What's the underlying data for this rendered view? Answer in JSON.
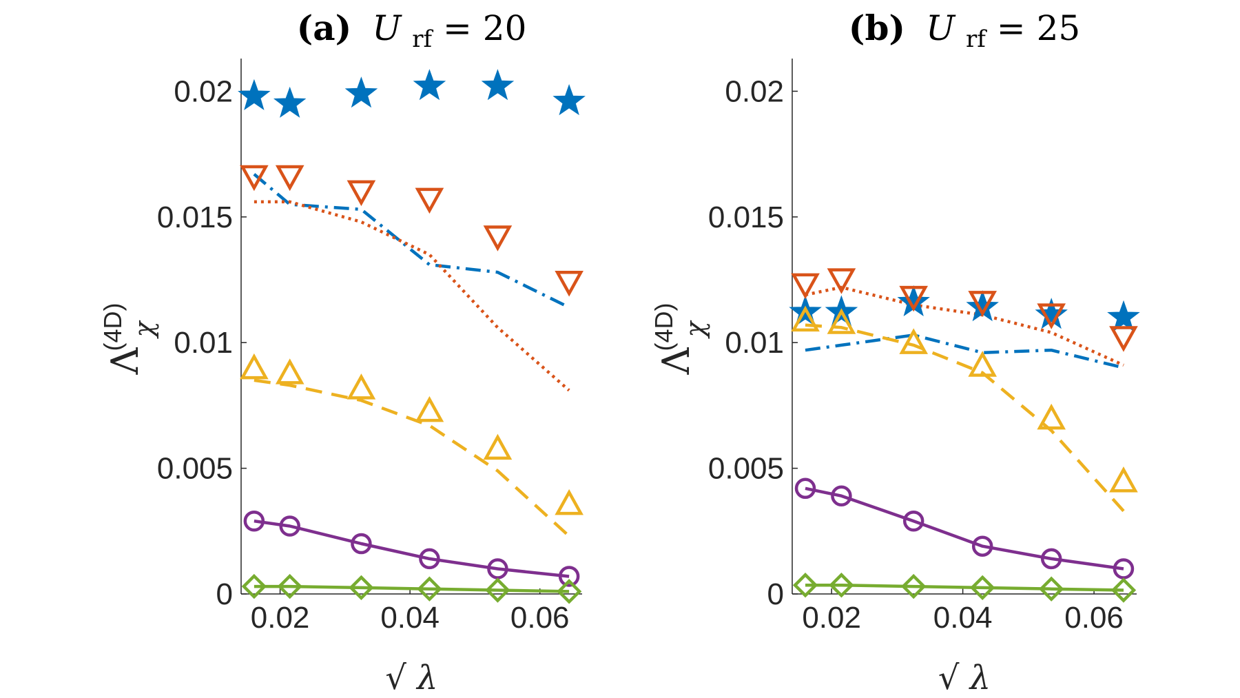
{
  "chart_data": [
    {
      "type": "line",
      "panel_label": "(a)",
      "title_var": "U",
      "title_sub": "rf",
      "title_eq": " = 20",
      "xlabel_root": "√",
      "xlabel_var": "λ",
      "ylabel_main": "Λ",
      "ylabel_sup": "(4D)",
      "ylabel_sub": "χ",
      "xlim": [
        0.014,
        0.0665
      ],
      "ylim": [
        0,
        0.0213
      ],
      "xticks": [
        0.02,
        0.04,
        0.06
      ],
      "xtick_labels": [
        "0.02",
        "0.04",
        "0.06"
      ],
      "yticks": [
        0,
        0.005,
        0.01,
        0.015,
        0.02
      ],
      "ytick_labels": [
        "0",
        "0.005",
        "0.01",
        "0.015",
        "0.02"
      ],
      "x": [
        0.016,
        0.0215,
        0.0325,
        0.043,
        0.0535,
        0.0645
      ],
      "series": [
        {
          "name": "blue stars",
          "color": "#0072BD",
          "marker": "star",
          "line": "none",
          "values": [
            0.0198,
            0.0195,
            0.0199,
            0.0202,
            0.0202,
            0.0196
          ]
        },
        {
          "name": "blue dash-dot",
          "color": "#0072BD",
          "marker": "none",
          "line": "dashdot",
          "values": [
            0.0167,
            0.0155,
            0.0153,
            0.0131,
            0.0128,
            0.0114
          ]
        },
        {
          "name": "red triangles down",
          "color": "#D95319",
          "marker": "triangle-down",
          "line": "none",
          "values": [
            0.0166,
            0.0166,
            0.016,
            0.0157,
            0.0142,
            0.0124
          ]
        },
        {
          "name": "red dotted",
          "color": "#D95319",
          "marker": "none",
          "line": "dotted",
          "values": [
            0.0156,
            0.0156,
            0.0148,
            0.0135,
            0.0106,
            0.0081
          ]
        },
        {
          "name": "yellow triangles up",
          "color": "#EDB120",
          "marker": "triangle-up",
          "line": "none",
          "values": [
            0.009,
            0.0088,
            0.0082,
            0.0073,
            0.0058,
            0.0036
          ]
        },
        {
          "name": "yellow dashed",
          "color": "#EDB120",
          "marker": "none",
          "line": "dashed",
          "values": [
            0.0085,
            0.0083,
            0.0077,
            0.0067,
            0.0049,
            0.0023
          ]
        },
        {
          "name": "purple circles",
          "color": "#7E2F8E",
          "marker": "circle",
          "line": "solid",
          "values": [
            0.0029,
            0.0027,
            0.002,
            0.0014,
            0.001,
            0.0007
          ]
        },
        {
          "name": "green diamonds",
          "color": "#77AC30",
          "marker": "diamond",
          "line": "solid",
          "values": [
            0.0003,
            0.0003,
            0.00025,
            0.0002,
            0.00015,
            0.0001
          ]
        }
      ]
    },
    {
      "type": "line",
      "panel_label": "(b)",
      "title_var": "U",
      "title_sub": "rf",
      "title_eq": " = 25",
      "xlabel_root": "√",
      "xlabel_var": "λ",
      "ylabel_main": "Λ",
      "ylabel_sup": "(4D)",
      "ylabel_sub": "χ",
      "xlim": [
        0.014,
        0.0665
      ],
      "ylim": [
        0,
        0.0213
      ],
      "xticks": [
        0.02,
        0.04,
        0.06
      ],
      "xtick_labels": [
        "0.02",
        "0.04",
        "0.06"
      ],
      "yticks": [
        0,
        0.005,
        0.01,
        0.015,
        0.02
      ],
      "ytick_labels": [
        "0",
        "0.005",
        "0.01",
        "0.015",
        "0.02"
      ],
      "x": [
        0.016,
        0.0215,
        0.0325,
        0.043,
        0.0535,
        0.0645
      ],
      "series": [
        {
          "name": "blue stars",
          "color": "#0072BD",
          "marker": "star",
          "line": "none",
          "values": [
            0.0112,
            0.0112,
            0.0116,
            0.0114,
            0.0111,
            0.011
          ]
        },
        {
          "name": "blue dash-dot",
          "color": "#0072BD",
          "marker": "none",
          "line": "dashdot",
          "values": [
            0.0097,
            0.0099,
            0.0103,
            0.0096,
            0.0097,
            0.009
          ]
        },
        {
          "name": "red triangles down",
          "color": "#D95319",
          "marker": "triangle-down",
          "line": "none",
          "values": [
            0.0123,
            0.0125,
            0.0118,
            0.0116,
            0.0111,
            0.0102
          ]
        },
        {
          "name": "red dotted",
          "color": "#D95319",
          "marker": "none",
          "line": "dotted",
          "values": [
            0.0119,
            0.0122,
            0.0115,
            0.0111,
            0.0104,
            0.0091
          ]
        },
        {
          "name": "yellow triangles up",
          "color": "#EDB120",
          "marker": "triangle-up",
          "line": "none",
          "values": [
            0.0109,
            0.0108,
            0.01,
            0.0091,
            0.007,
            0.0045
          ]
        },
        {
          "name": "yellow dashed",
          "color": "#EDB120",
          "marker": "none",
          "line": "dashed",
          "values": [
            0.0107,
            0.0106,
            0.0099,
            0.0088,
            0.0065,
            0.0033
          ]
        },
        {
          "name": "purple circles",
          "color": "#7E2F8E",
          "marker": "circle",
          "line": "solid",
          "values": [
            0.0042,
            0.0039,
            0.0029,
            0.0019,
            0.0014,
            0.001
          ]
        },
        {
          "name": "green diamonds",
          "color": "#77AC30",
          "marker": "diamond",
          "line": "solid",
          "values": [
            0.00035,
            0.00035,
            0.0003,
            0.00025,
            0.0002,
            0.00015
          ]
        }
      ]
    }
  ]
}
